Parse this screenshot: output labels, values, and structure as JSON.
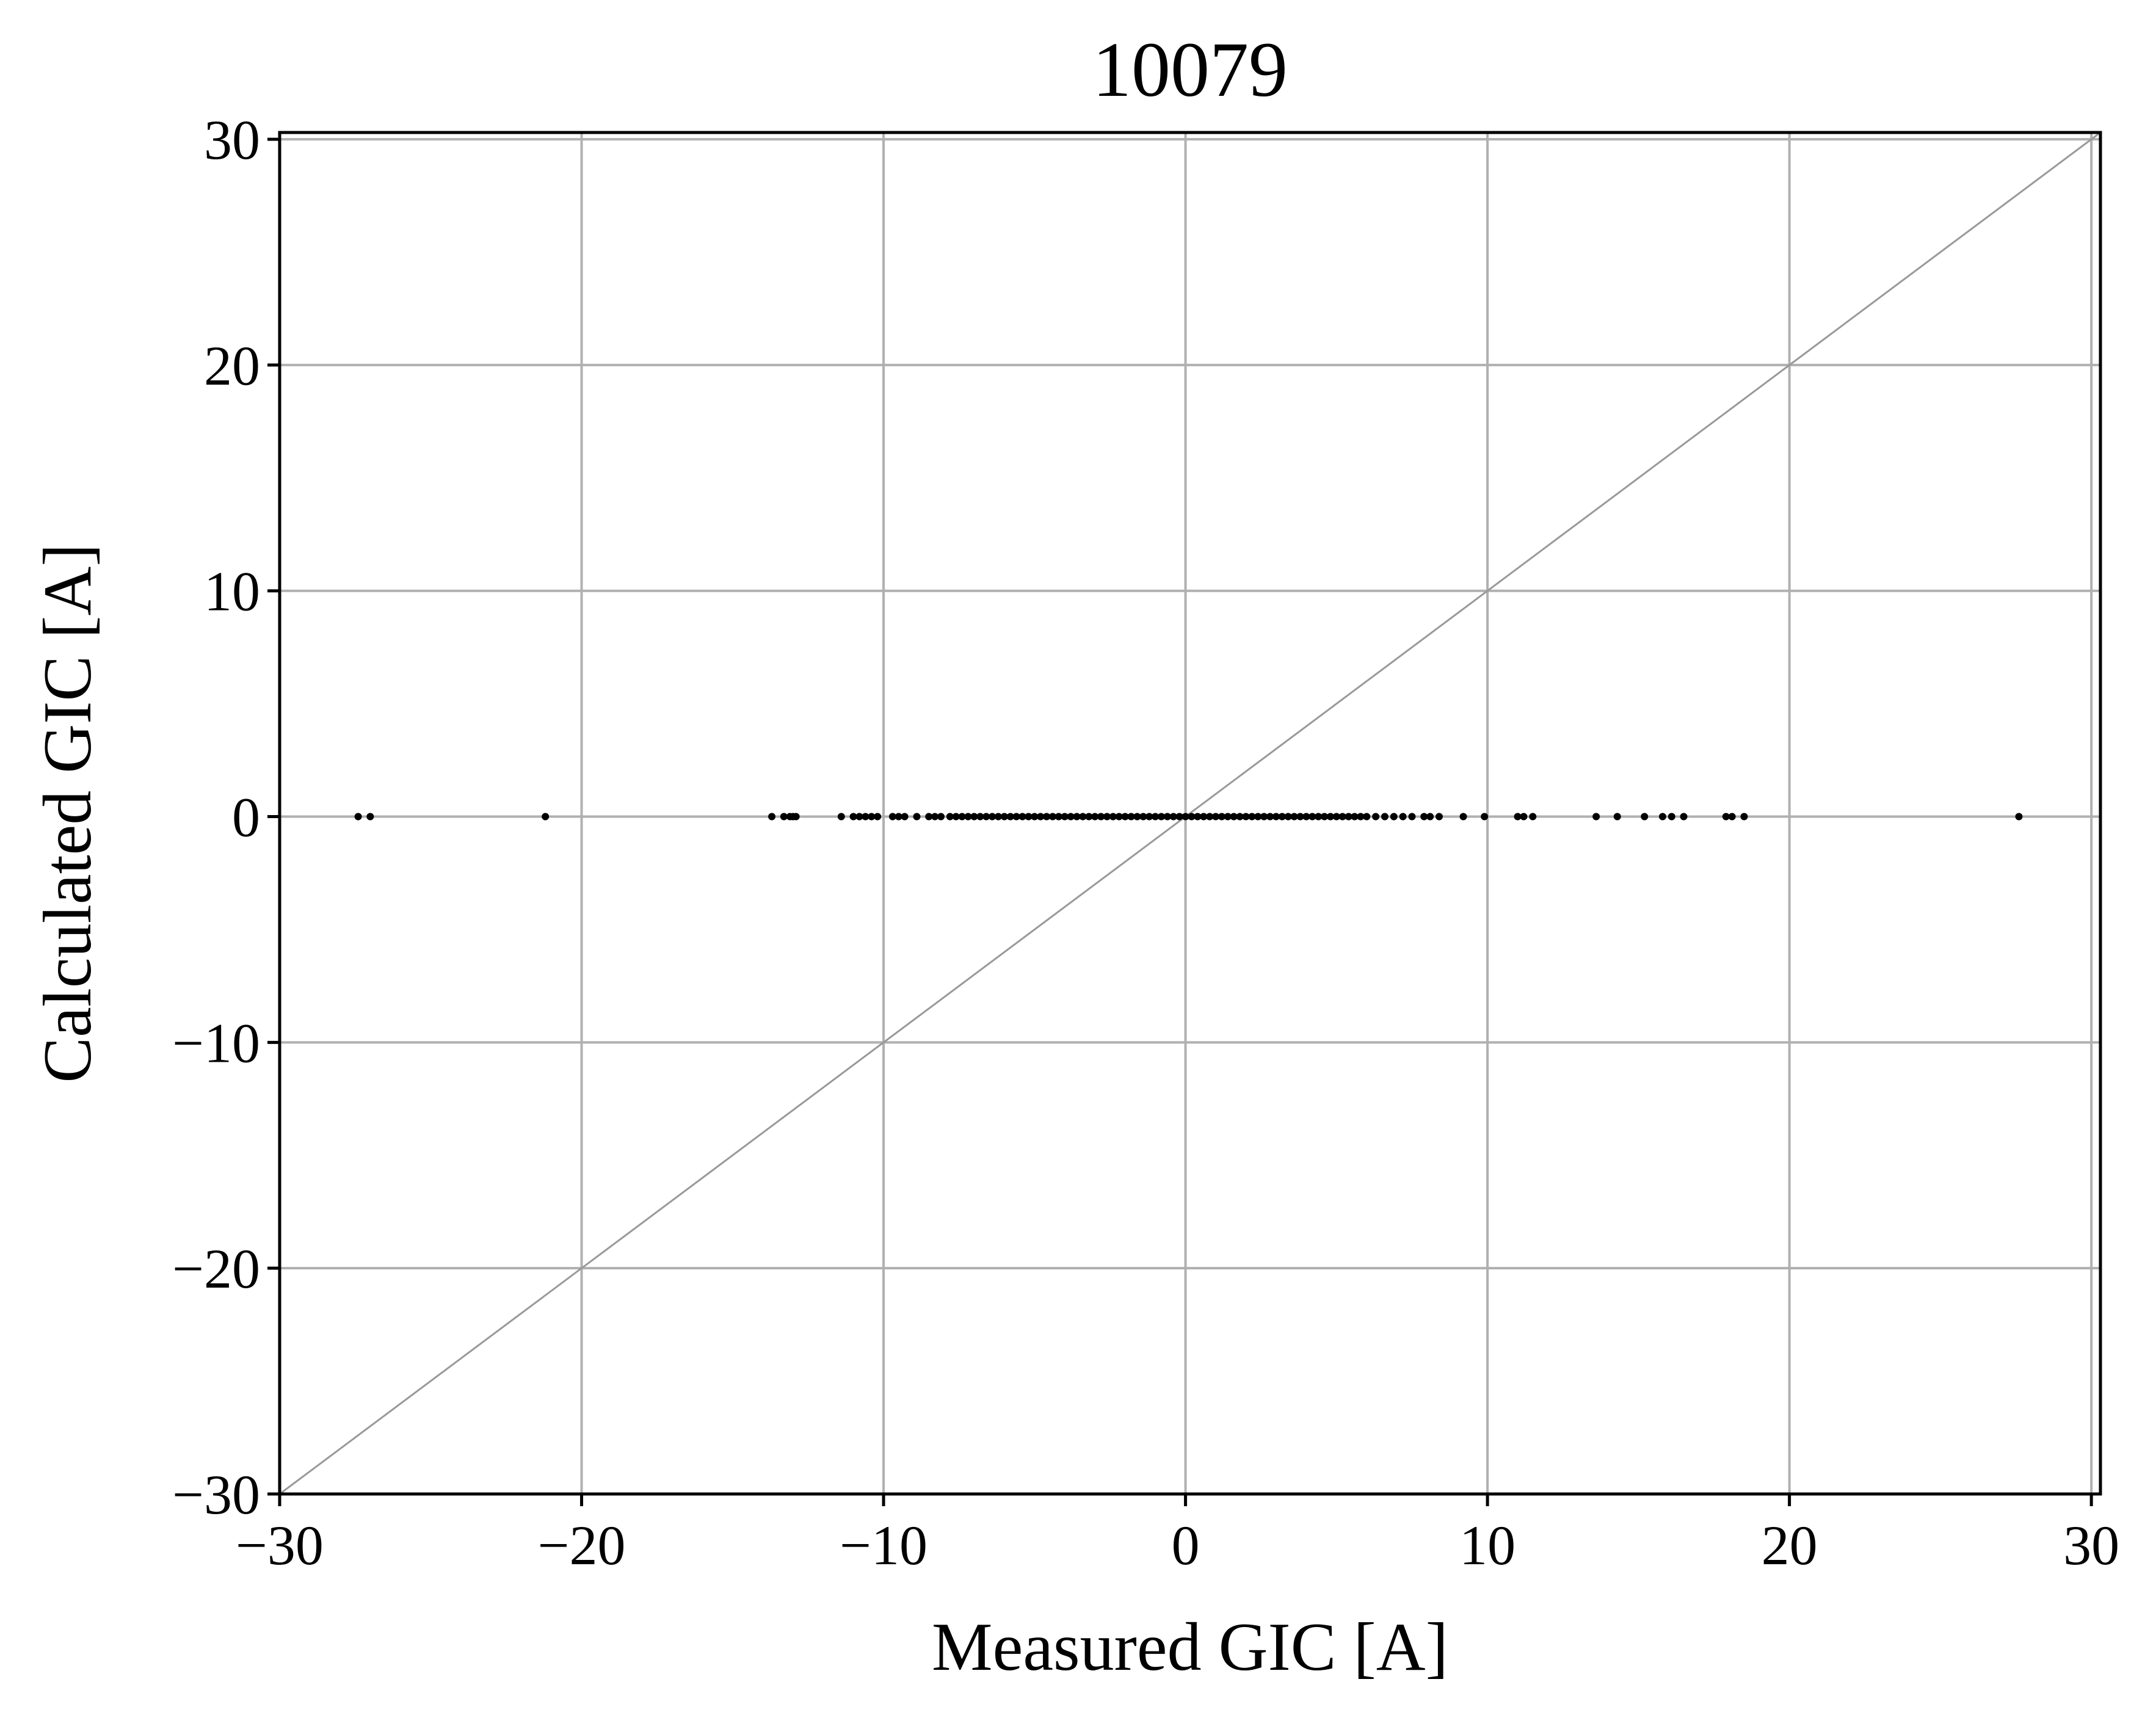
{
  "chart_data": {
    "type": "scatter",
    "title": "10079",
    "xlabel": "Measured GIC [A]",
    "ylabel": "Calculated GIC [A]",
    "xlim": [
      -30,
      30.3
    ],
    "ylim": [
      -30,
      30.3
    ],
    "xticks": [
      -30,
      -20,
      -10,
      0,
      10,
      20,
      30
    ],
    "yticks": [
      -30,
      -20,
      -10,
      0,
      10,
      20,
      30
    ],
    "xtick_labels": [
      "−30",
      "−20",
      "−10",
      "0",
      "10",
      "20",
      "30"
    ],
    "ytick_labels": [
      "−30",
      "−20",
      "−10",
      "0",
      "10",
      "20",
      "30"
    ],
    "grid": true,
    "reference_line": {
      "from": [
        -30,
        -30
      ],
      "to": [
        30.3,
        30.3
      ],
      "color": "#999999"
    },
    "colors": {
      "points": "#000000",
      "grid": "#b0b0b0",
      "axes": "#000000"
    },
    "series": [
      {
        "x": [
          -27.4,
          -27.0,
          -21.2,
          -13.7,
          -13.3,
          -13.1,
          -13.0,
          -12.9,
          -11.4,
          -11.0,
          -10.8,
          -10.6,
          -10.4,
          -10.2,
          -9.7,
          -9.5,
          -9.3,
          -8.9,
          -8.5,
          -8.3,
          -8.1,
          -7.8,
          -7.6,
          -7.4,
          -7.2,
          -7.0,
          -6.8,
          -6.6,
          -6.4,
          -6.2,
          -6.0,
          -5.8,
          -5.6,
          -5.4,
          -5.2,
          -5.0,
          -4.8,
          -4.6,
          -4.4,
          -4.2,
          -4.0,
          -3.8,
          -3.6,
          -3.4,
          -3.2,
          -3.0,
          -2.8,
          -2.6,
          -2.4,
          -2.2,
          -2.0,
          -1.8,
          -1.6,
          -1.4,
          -1.2,
          -1.0,
          -0.8,
          -0.6,
          -0.4,
          -0.2,
          0.0,
          0.2,
          0.4,
          0.6,
          0.8,
          1.0,
          1.2,
          1.4,
          1.6,
          1.8,
          2.0,
          2.2,
          2.4,
          2.6,
          2.8,
          3.0,
          3.2,
          3.4,
          3.6,
          3.8,
          4.0,
          4.2,
          4.4,
          4.6,
          4.8,
          5.0,
          5.2,
          5.4,
          5.6,
          5.8,
          6.0,
          6.3,
          6.6,
          6.9,
          7.2,
          7.5,
          7.9,
          8.1,
          8.4,
          9.2,
          9.9,
          11.0,
          11.2,
          11.5,
          13.6,
          14.3,
          15.2,
          15.8,
          16.1,
          16.5,
          17.9,
          18.1,
          18.5,
          27.6
        ],
        "y": [
          0,
          0,
          0,
          0,
          0,
          0,
          0,
          0,
          0,
          0,
          0,
          0,
          0,
          0,
          0,
          0,
          0,
          0,
          0,
          0,
          0,
          0,
          0,
          0,
          0,
          0,
          0,
          0,
          0,
          0,
          0,
          0,
          0,
          0,
          0,
          0,
          0,
          0,
          0,
          0,
          0,
          0,
          0,
          0,
          0,
          0,
          0,
          0,
          0,
          0,
          0,
          0,
          0,
          0,
          0,
          0,
          0,
          0,
          0,
          0,
          0,
          0,
          0,
          0,
          0,
          0,
          0,
          0,
          0,
          0,
          0,
          0,
          0,
          0,
          0,
          0,
          0,
          0,
          0,
          0,
          0,
          0,
          0,
          0,
          0,
          0,
          0,
          0,
          0,
          0,
          0,
          0,
          0,
          0,
          0,
          0,
          0,
          0,
          0,
          0,
          0,
          0,
          0,
          0,
          0,
          0,
          0,
          0,
          0,
          0,
          0,
          0,
          0,
          0
        ]
      }
    ]
  }
}
